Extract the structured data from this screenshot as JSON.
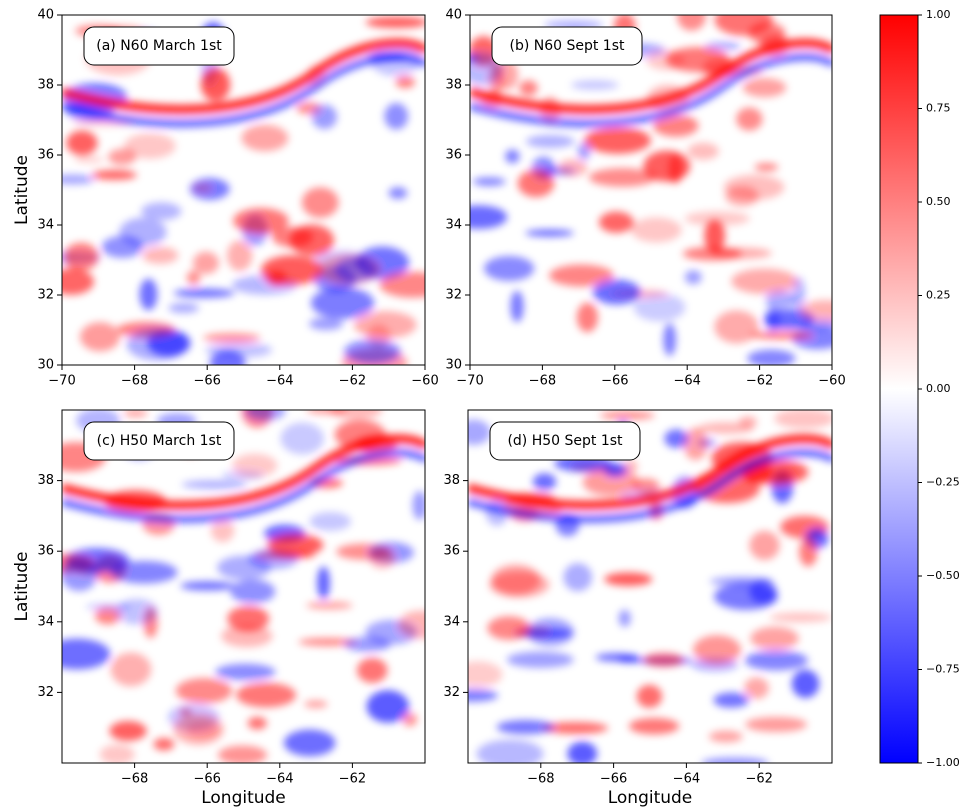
{
  "chart_data": [
    {
      "type": "heatmap",
      "annotation": "(a) N60 March 1st",
      "ylabel": "Latitude",
      "xlim": [
        -70,
        -60
      ],
      "ylim": [
        30,
        40
      ],
      "xticks": [
        {
          "value": -70,
          "label": "−70"
        },
        {
          "value": -68,
          "label": "−68"
        },
        {
          "value": -66,
          "label": "−66"
        },
        {
          "value": -64,
          "label": "−64"
        },
        {
          "value": -62,
          "label": "−62"
        },
        {
          "value": -60,
          "label": "−60"
        }
      ],
      "yticks": [
        30,
        32,
        34,
        36,
        38,
        40
      ]
    },
    {
      "type": "heatmap",
      "annotation": "(b) N60 Sept 1st",
      "xlim": [
        -70,
        -60
      ],
      "ylim": [
        30,
        40
      ],
      "xticks": [
        {
          "value": -70,
          "label": "−70"
        },
        {
          "value": -68,
          "label": "−68"
        },
        {
          "value": -66,
          "label": "−66"
        },
        {
          "value": -64,
          "label": "−64"
        },
        {
          "value": -62,
          "label": "−62"
        },
        {
          "value": -60,
          "label": "−60"
        }
      ],
      "yticks": [
        30,
        32,
        34,
        36,
        38,
        40
      ]
    },
    {
      "type": "heatmap",
      "annotation": "(c) H50 March 1st",
      "xlabel": "Longitude",
      "ylabel": "Latitude",
      "xlim": [
        -70,
        -60
      ],
      "ylim": [
        30,
        40
      ],
      "xticks": [
        {
          "value": -68,
          "label": "−68"
        },
        {
          "value": -66,
          "label": "−66"
        },
        {
          "value": -64,
          "label": "−64"
        },
        {
          "value": -62,
          "label": "−62"
        }
      ],
      "yticks": [
        32,
        34,
        36,
        38
      ]
    },
    {
      "type": "heatmap",
      "annotation": "(d) H50 Sept 1st",
      "xlabel": "Longitude",
      "xlim": [
        -70,
        -60
      ],
      "ylim": [
        30,
        40
      ],
      "xticks": [
        {
          "value": -68,
          "label": "−68"
        },
        {
          "value": -66,
          "label": "−66"
        },
        {
          "value": -64,
          "label": "−64"
        },
        {
          "value": -62,
          "label": "−62"
        }
      ],
      "yticks": [
        32,
        34,
        36,
        38
      ]
    }
  ],
  "colorbar": {
    "lim": [
      -1,
      1
    ],
    "colors": [
      "#0000ff",
      "#ffffff",
      "#ff0000"
    ],
    "ticks": [
      {
        "value": 1,
        "label": "1.00"
      },
      {
        "value": 0.75,
        "label": "0.75"
      },
      {
        "value": 0.5,
        "label": "0.50"
      },
      {
        "value": 0.25,
        "label": "0.25"
      },
      {
        "value": 0,
        "label": "0.00"
      },
      {
        "value": -0.25,
        "label": "−0.25"
      },
      {
        "value": -0.5,
        "label": "−0.50"
      },
      {
        "value": -0.75,
        "label": "−0.75"
      },
      {
        "value": -1,
        "label": "−1.00"
      }
    ]
  }
}
